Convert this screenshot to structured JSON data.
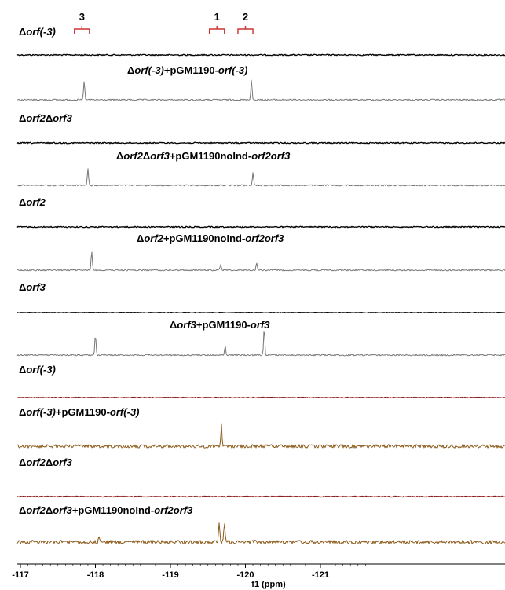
{
  "chart_data": {
    "type": "line",
    "title": "",
    "xlabel": "f1 (ppm)",
    "ylabel": "",
    "xlim": [
      -117,
      -121.6
    ],
    "x_reversed": true,
    "x_ticks": [
      -117,
      -118,
      -119,
      -120,
      -121
    ],
    "x_tick_labels": [
      "-117",
      "-118",
      "-119",
      "-120",
      "-121"
    ],
    "grid": false,
    "peak_markers": [
      {
        "label": "3",
        "x_range": [
          -117.72,
          -117.92
        ]
      },
      {
        "label": "1",
        "x_range": [
          -119.52,
          -119.72
        ]
      },
      {
        "label": "2",
        "x_range": [
          -119.9,
          -120.1
        ]
      }
    ],
    "series": [
      {
        "name": "Δorf(-3)",
        "label_parts": [
          [
            "Δ",
            false
          ],
          [
            "orf(-3)",
            true
          ]
        ],
        "color": "#000000",
        "noise": 0.8,
        "peaks": []
      },
      {
        "name": "Δorf(-3)+pGM1190-orf(-3)",
        "label_parts": [
          [
            "Δ",
            false
          ],
          [
            "orf(-3)",
            true
          ],
          [
            "+pGM1190-",
            false
          ],
          [
            "orf(-3)",
            true
          ]
        ],
        "color": "#777777",
        "noise": 0.9,
        "peaks": [
          {
            "x": -117.85,
            "h": 24
          },
          {
            "x": -120.08,
            "h": 26
          }
        ]
      },
      {
        "name": "Δorf2Δorf3",
        "label_parts": [
          [
            "Δ",
            false
          ],
          [
            "orf2",
            true
          ],
          [
            "Δ",
            false
          ],
          [
            "orf3",
            true
          ]
        ],
        "color": "#000000",
        "noise": 0.8,
        "peaks": []
      },
      {
        "name": "Δorf2Δorf3+pGM1190noInd-orf2orf3",
        "label_parts": [
          [
            "Δ",
            false
          ],
          [
            "orf2",
            true
          ],
          [
            "Δ",
            false
          ],
          [
            "orf3",
            true
          ],
          [
            "+pGM1190noInd-",
            false
          ],
          [
            "orf2orf3",
            true
          ]
        ],
        "color": "#777777",
        "noise": 0.9,
        "peaks": [
          {
            "x": -117.9,
            "h": 22
          },
          {
            "x": -120.1,
            "h": 16
          }
        ]
      },
      {
        "name": "Δorf2",
        "label_parts": [
          [
            "Δ",
            false
          ],
          [
            "orf2",
            true
          ]
        ],
        "color": "#000000",
        "noise": 0.8,
        "peaks": []
      },
      {
        "name": "Δorf2+pGM1190noInd-orf2orf3",
        "label_parts": [
          [
            "Δ",
            false
          ],
          [
            "orf2",
            true
          ],
          [
            "+pGM1190noInd-",
            false
          ],
          [
            "orf2orf3",
            true
          ]
        ],
        "color": "#777777",
        "noise": 0.9,
        "peaks": [
          {
            "x": -117.95,
            "h": 24
          },
          {
            "x": -119.67,
            "h": 8
          },
          {
            "x": -120.15,
            "h": 10
          }
        ]
      },
      {
        "name": "Δorf3",
        "label_parts": [
          [
            "Δ",
            false
          ],
          [
            "orf3",
            true
          ]
        ],
        "color": "#000000",
        "noise": 0.4,
        "peaks": []
      },
      {
        "name": "Δorf3+pGM1190-orf3",
        "label_parts": [
          [
            "Δ",
            false
          ],
          [
            "orf3",
            true
          ],
          [
            "+pGM1190-",
            false
          ],
          [
            "orf3",
            true
          ]
        ],
        "color": "#777777",
        "noise": 0.9,
        "peaks": [
          {
            "x": -118.0,
            "h": 26
          },
          {
            "x": -119.73,
            "h": 12
          },
          {
            "x": -120.25,
            "h": 34
          }
        ]
      },
      {
        "name": "Δorf(-3)",
        "label_parts": [
          [
            "Δ",
            false
          ],
          [
            "orf(-3)",
            true
          ]
        ],
        "color": "#8b1a1a",
        "noise": 0.5,
        "peaks": []
      },
      {
        "name": "Δorf(-3)+pGM1190-orf(-3)",
        "label_parts": [
          [
            "Δ",
            false
          ],
          [
            "orf(-3)",
            true
          ],
          [
            "+pGM1190-",
            false
          ],
          [
            "orf(-3)",
            true
          ]
        ],
        "color": "#8b5a1a",
        "noise": 2.2,
        "peaks": [
          {
            "x": -119.68,
            "h": 28
          }
        ]
      },
      {
        "name": "Δorf2Δorf3",
        "label_parts": [
          [
            "Δ",
            false
          ],
          [
            "orf2",
            true
          ],
          [
            "Δ",
            false
          ],
          [
            "orf3",
            true
          ]
        ],
        "color": "#8b1a1a",
        "noise": 0.6,
        "peaks": []
      },
      {
        "name": "Δorf2Δorf3+pGM1190noInd-orf2orf3",
        "label_parts": [
          [
            "Δ",
            false
          ],
          [
            "orf2",
            true
          ],
          [
            "Δ",
            false
          ],
          [
            "orf3",
            true
          ],
          [
            "+pGM1190noInd-",
            false
          ],
          [
            "orf2orf3",
            true
          ]
        ],
        "color": "#8b5a1a",
        "noise": 2.4,
        "peaks": [
          {
            "x": -118.05,
            "h": 8
          },
          {
            "x": -119.65,
            "h": 26
          },
          {
            "x": -119.72,
            "h": 24
          }
        ]
      }
    ]
  }
}
